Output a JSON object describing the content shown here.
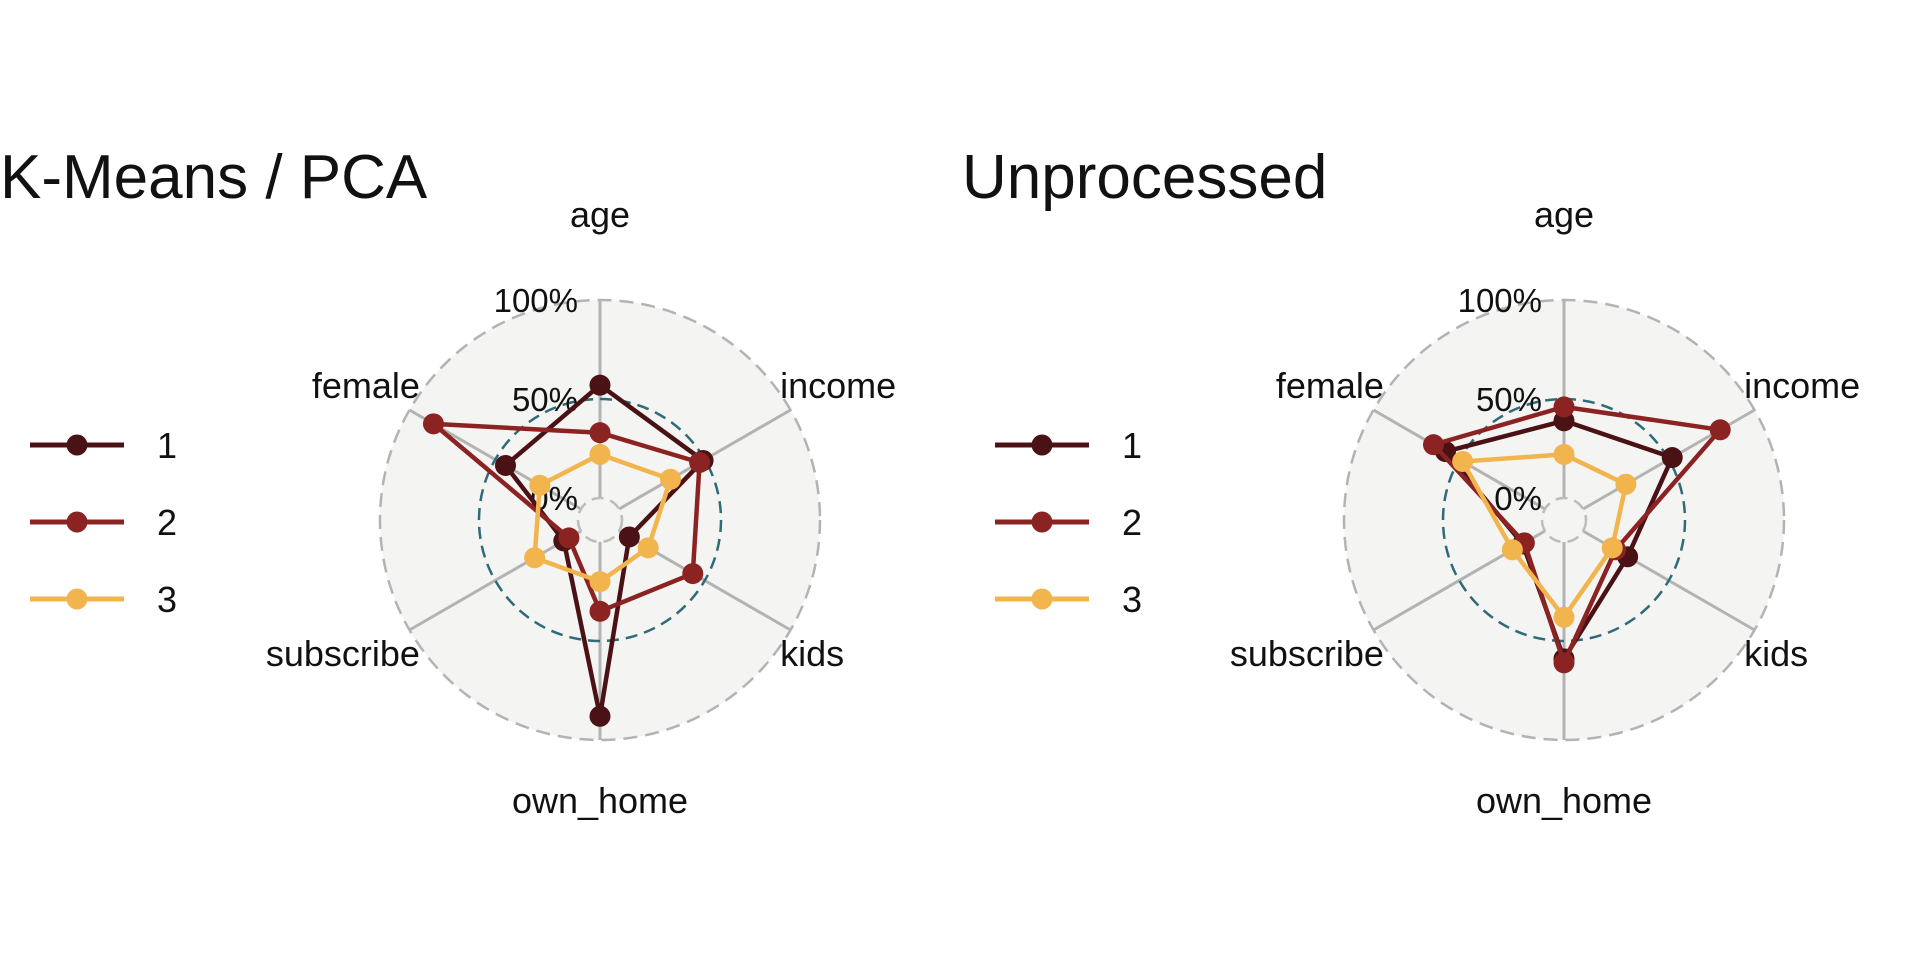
{
  "chart_data": [
    {
      "type": "radar",
      "title": "K-Means / PCA",
      "axes": [
        "age",
        "income",
        "kids",
        "own_home",
        "subscribe",
        "female"
      ],
      "rlim": [
        0,
        100
      ],
      "r_ticks": [
        "0%",
        "50%",
        "100%"
      ],
      "reference_circle": 50,
      "legend_placement": "left",
      "series": [
        {
          "name": "1",
          "color": "#4a1214",
          "values": [
            57,
            49,
            6,
            88,
            10,
            44
          ]
        },
        {
          "name": "2",
          "color": "#8b2323",
          "values": [
            33,
            47,
            43,
            35,
            7,
            86
          ]
        },
        {
          "name": "3",
          "color": "#f2b44c",
          "values": [
            22,
            30,
            17,
            20,
            27,
            24
          ]
        }
      ]
    },
    {
      "type": "radar",
      "title": "Unprocessed",
      "axes": [
        "age",
        "income",
        "kids",
        "own_home",
        "subscribe",
        "female"
      ],
      "rlim": [
        0,
        100
      ],
      "r_ticks": [
        "0%",
        "50%",
        "100%"
      ],
      "reference_circle": 50,
      "legend_placement": "left",
      "series": [
        {
          "name": "1",
          "color": "#4a1214",
          "values": [
            39,
            52,
            26,
            59,
            13,
            58
          ]
        },
        {
          "name": "2",
          "color": "#8b2323",
          "values": [
            46,
            80,
            19,
            61,
            12,
            65
          ]
        },
        {
          "name": "3",
          "color": "#f2b44c",
          "values": [
            22,
            25,
            17,
            38,
            19,
            48
          ]
        }
      ]
    }
  ]
}
